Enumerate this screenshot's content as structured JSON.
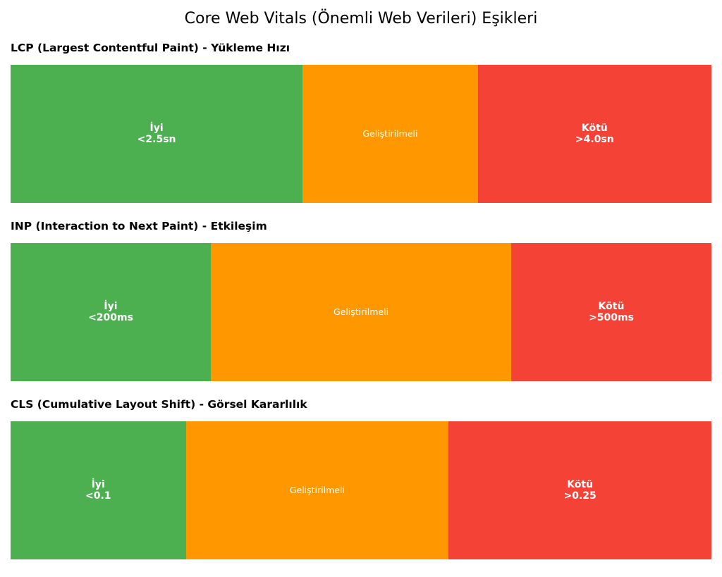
{
  "title": "Core Web Vitals (Önemli Web Verileri) Eşikleri",
  "colors": {
    "good": "#4caf50",
    "needs_improvement": "#ff9800",
    "poor": "#f44336"
  },
  "panels": [
    {
      "title": "LCP (Largest Contentful Paint) - Yükleme Hızı",
      "good": {
        "label": "İyi",
        "value": "<2.5sn"
      },
      "mid": {
        "label": "Geliştirilmeli"
      },
      "bad": {
        "label": "Kötü",
        "value": ">4.0sn"
      }
    },
    {
      "title": "INP (Interaction to Next Paint) - Etkileşim",
      "good": {
        "label": "İyi",
        "value": "<200ms"
      },
      "mid": {
        "label": "Geliştirilmeli"
      },
      "bad": {
        "label": "Kötü",
        "value": ">500ms"
      }
    },
    {
      "title": "CLS (Cumulative Layout Shift) - Görsel Kararlılık",
      "good": {
        "label": "İyi",
        "value": "<0.1"
      },
      "mid": {
        "label": "Geliştirilmeli"
      },
      "bad": {
        "label": "Kötü",
        "value": ">0.25"
      }
    }
  ],
  "chart_data": [
    {
      "type": "bar",
      "title": "LCP (Largest Contentful Paint) - Yükleme Hızı",
      "unit": "sn",
      "segments": [
        {
          "label": "İyi",
          "range": [
            0,
            2.5
          ]
        },
        {
          "label": "Geliştirilmeli",
          "range": [
            2.5,
            4.0
          ]
        },
        {
          "label": "Kötü",
          "range": [
            4.0,
            6.0
          ]
        }
      ]
    },
    {
      "type": "bar",
      "title": "INP (Interaction to Next Paint) - Etkileşim",
      "unit": "ms",
      "segments": [
        {
          "label": "İyi",
          "range": [
            0,
            200
          ]
        },
        {
          "label": "Geliştirilmeli",
          "range": [
            200,
            500
          ]
        },
        {
          "label": "Kötü",
          "range": [
            500,
            700
          ]
        }
      ]
    },
    {
      "type": "bar",
      "title": "CLS (Cumulative Layout Shift) - Görsel Kararlılık",
      "unit": "",
      "segments": [
        {
          "label": "İyi",
          "range": [
            0,
            0.1
          ]
        },
        {
          "label": "Geliştirilmeli",
          "range": [
            0.1,
            0.25
          ]
        },
        {
          "label": "Kötü",
          "range": [
            0.25,
            0.4
          ]
        }
      ]
    }
  ]
}
